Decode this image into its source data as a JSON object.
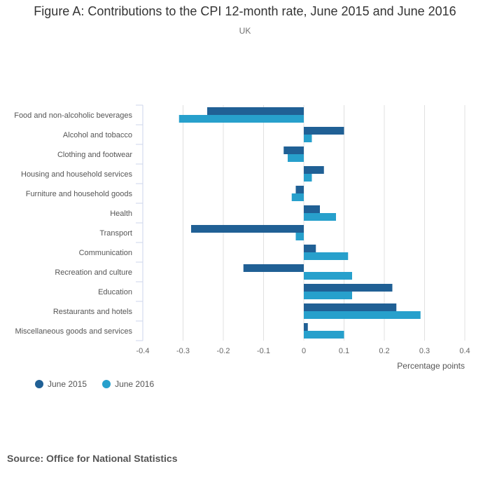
{
  "header": {
    "title": "Figure A: Contributions to the CPI 12-month rate, June 2015 and June 2016",
    "subtitle": "UK"
  },
  "source": "Source: Office for National Statistics",
  "chart_data": {
    "type": "bar",
    "orientation": "horizontal",
    "title": "Figure A: Contributions to the CPI 12-month rate, June 2015 and June 2016",
    "subtitle": "UK",
    "xlabel": "Percentage points",
    "ylabel": "",
    "xlim": [
      -0.4,
      0.4
    ],
    "xticks": [
      -0.4,
      -0.3,
      -0.2,
      -0.1,
      0,
      0.1,
      0.2,
      0.3,
      0.4
    ],
    "xtick_labels": [
      "-0.4",
      "-0.3",
      "-0.2",
      "-0.1",
      "0",
      "0.1",
      "0.2",
      "0.3",
      "0.4"
    ],
    "grid": true,
    "legend_position": "bottom-left",
    "categories": [
      "Food and non-alcoholic beverages",
      "Alcohol and tobacco",
      "Clothing and footwear",
      "Housing and household services",
      "Furniture and household goods",
      "Health",
      "Transport",
      "Communication",
      "Recreation and culture",
      "Education",
      "Restaurants and hotels",
      "Miscellaneous goods and services"
    ],
    "series": [
      {
        "name": "June 2015",
        "color": "#206095",
        "values": [
          -0.24,
          0.1,
          -0.05,
          0.05,
          -0.02,
          0.04,
          -0.28,
          0.03,
          -0.15,
          0.22,
          0.23,
          0.01
        ]
      },
      {
        "name": "June 2016",
        "color": "#27a0cc",
        "values": [
          -0.31,
          0.02,
          -0.04,
          0.02,
          -0.03,
          0.08,
          -0.02,
          0.11,
          0.12,
          0.12,
          0.29,
          0.1
        ]
      }
    ]
  }
}
